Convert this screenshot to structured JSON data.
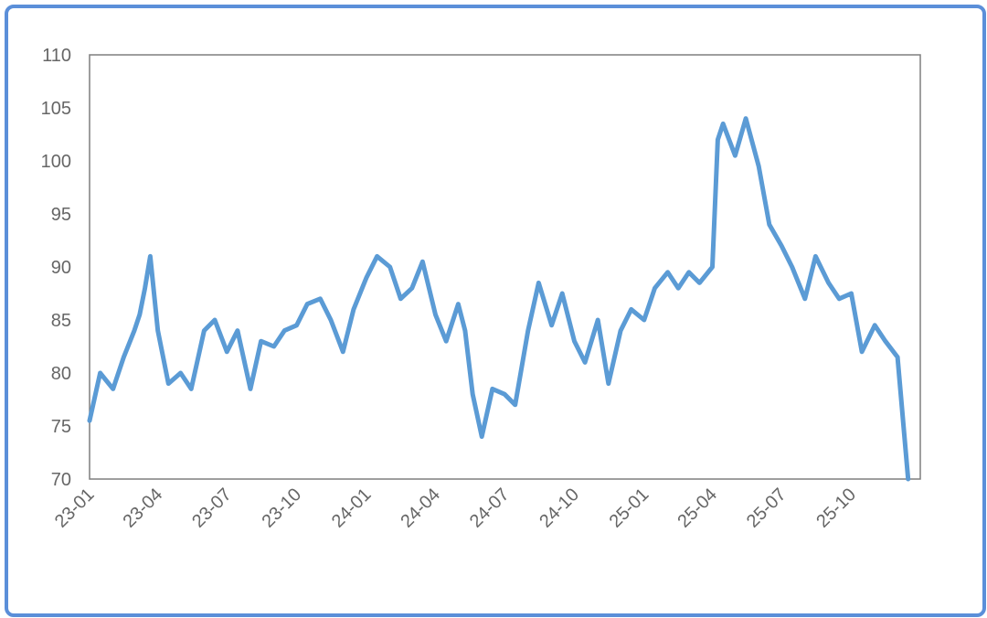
{
  "chart_data": {
    "type": "line",
    "title": "",
    "xlabel": "",
    "ylabel": "",
    "ylim": [
      70,
      110
    ],
    "y_ticks": [
      70,
      75,
      80,
      85,
      90,
      95,
      100,
      105,
      110
    ],
    "x_ticks": [
      "23-01",
      "23-04",
      "23-07",
      "23-10",
      "24-01",
      "24-04",
      "24-07",
      "24-10",
      "25-01",
      "25-04",
      "25-07",
      "25-10"
    ],
    "x_range": [
      "2023-01",
      "2025-12"
    ],
    "grid": false,
    "legend": "none",
    "series": [
      {
        "color": "#5b9bd5",
        "x": [
          "2023-01-01",
          "2023-01-15",
          "2023-02-01",
          "2023-02-15",
          "2023-03-01",
          "2023-03-08",
          "2023-03-15",
          "2023-03-22",
          "2023-04-01",
          "2023-04-15",
          "2023-05-01",
          "2023-05-15",
          "2023-06-01",
          "2023-06-15",
          "2023-07-01",
          "2023-07-15",
          "2023-08-01",
          "2023-08-15",
          "2023-09-01",
          "2023-09-15",
          "2023-10-01",
          "2023-10-15",
          "2023-11-01",
          "2023-11-15",
          "2023-12-01",
          "2023-12-15",
          "2024-01-01",
          "2024-01-15",
          "2024-02-01",
          "2024-02-15",
          "2024-03-01",
          "2024-03-15",
          "2024-04-01",
          "2024-04-15",
          "2024-05-01",
          "2024-05-10",
          "2024-05-20",
          "2024-06-01",
          "2024-06-15",
          "2024-07-01",
          "2024-07-15",
          "2024-08-01",
          "2024-08-15",
          "2024-09-01",
          "2024-09-15",
          "2024-10-01",
          "2024-10-15",
          "2024-11-01",
          "2024-11-15",
          "2024-12-01",
          "2024-12-15",
          "2025-01-01",
          "2025-01-15",
          "2025-02-01",
          "2025-02-15",
          "2025-03-01",
          "2025-03-15",
          "2025-04-01",
          "2025-04-08",
          "2025-04-15",
          "2025-05-01",
          "2025-05-15",
          "2025-06-01",
          "2025-06-15",
          "2025-07-01",
          "2025-07-15",
          "2025-08-01",
          "2025-08-15",
          "2025-09-01",
          "2025-09-15",
          "2025-10-01",
          "2025-10-15",
          "2025-11-01",
          "2025-11-15",
          "2025-12-01",
          "2025-12-15"
        ],
        "y": [
          75.5,
          80.0,
          78.5,
          81.5,
          84.0,
          85.5,
          88.0,
          91.0,
          84.0,
          79.0,
          80.0,
          78.5,
          84.0,
          85.0,
          82.0,
          84.0,
          78.5,
          83.0,
          82.5,
          84.0,
          84.5,
          86.5,
          87.0,
          85.0,
          82.0,
          86.0,
          89.0,
          91.0,
          90.0,
          87.0,
          88.0,
          90.5,
          85.5,
          83.0,
          86.5,
          84.0,
          78.0,
          74.0,
          78.5,
          78.0,
          77.0,
          84.0,
          88.5,
          84.5,
          87.5,
          83.0,
          81.0,
          85.0,
          79.0,
          84.0,
          86.0,
          85.0,
          88.0,
          89.5,
          88.0,
          89.5,
          88.5,
          90.0,
          102.0,
          103.5,
          100.5,
          104.0,
          99.5,
          94.0,
          92.0,
          90.0,
          87.0,
          91.0,
          88.5,
          87.0,
          87.5,
          82.0,
          84.5,
          83.0,
          81.5,
          70.0
        ]
      }
    ]
  }
}
